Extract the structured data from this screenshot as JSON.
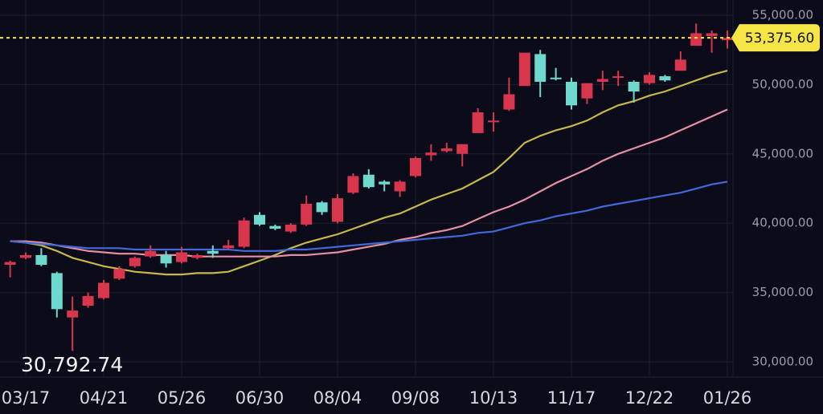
{
  "chart_data": {
    "type": "candlestick",
    "categories": [
      null,
      "03/17",
      null,
      null,
      null,
      null,
      "04/21",
      null,
      null,
      null,
      null,
      "05/26",
      null,
      null,
      null,
      null,
      "06/30",
      null,
      null,
      null,
      null,
      "08/04",
      null,
      null,
      null,
      null,
      "09/08",
      null,
      null,
      null,
      null,
      "10/13",
      null,
      null,
      null,
      null,
      "11/17",
      null,
      null,
      null,
      null,
      "12/22",
      null,
      null,
      null,
      null,
      "01/26"
    ],
    "open": [
      37000,
      37500,
      37700,
      36400,
      33200,
      34050,
      34600,
      36000,
      36900,
      37600,
      37700,
      37200,
      37500,
      38000,
      38200,
      38300,
      40600,
      39800,
      39400,
      39900,
      41500,
      40100,
      42200,
      43500,
      43000,
      42300,
      43400,
      44900,
      45200,
      45000,
      46500,
      47300,
      48200,
      49900,
      52200,
      50500,
      50200,
      49000,
      50200,
      50500,
      50200,
      50100,
      50600,
      51000,
      52800,
      53500,
      53200
    ],
    "high": [
      37300,
      37900,
      38200,
      36500,
      34700,
      35000,
      35900,
      36900,
      37600,
      38400,
      38000,
      38300,
      37800,
      38400,
      38800,
      40400,
      40800,
      39900,
      40000,
      42000,
      41600,
      42100,
      43600,
      43900,
      43100,
      43100,
      44800,
      45700,
      45800,
      45700,
      48300,
      48000,
      50500,
      52300,
      52500,
      51200,
      50500,
      50100,
      51000,
      51000,
      50300,
      50900,
      50700,
      52400,
      54400,
      53900,
      53900
    ],
    "low": [
      36100,
      37400,
      36900,
      33200,
      30792.74,
      33900,
      34500,
      35900,
      36800,
      37500,
      36800,
      37100,
      37400,
      37500,
      38100,
      38200,
      39800,
      39500,
      39300,
      39800,
      40600,
      40000,
      42100,
      42500,
      42300,
      41900,
      43300,
      44500,
      45100,
      44100,
      46500,
      46600,
      48100,
      49900,
      49100,
      50300,
      48200,
      48600,
      49600,
      49900,
      48700,
      50000,
      50200,
      51000,
      52800,
      52300,
      52600
    ],
    "close": [
      37200,
      37700,
      37000,
      33800,
      33700,
      34750,
      35700,
      36700,
      37500,
      38000,
      37100,
      37900,
      37700,
      37800,
      38400,
      40200,
      39900,
      39600,
      39900,
      41400,
      40800,
      41800,
      43400,
      42600,
      42800,
      43000,
      44700,
      45100,
      45400,
      45700,
      48000,
      47400,
      49300,
      52300,
      50200,
      50400,
      48500,
      50100,
      50400,
      50600,
      49500,
      50700,
      50300,
      51800,
      53700,
      53700,
      53375.6
    ],
    "up_color": "#d8364c",
    "down_color": "#6fd9cf",
    "lines": [
      {
        "color": "#c8b84a",
        "values": [
          38700,
          38600,
          38400,
          38000,
          37500,
          37200,
          36900,
          36700,
          36500,
          36400,
          36300,
          36300,
          36400,
          36400,
          36500,
          36900,
          37300,
          37700,
          38200,
          38600,
          38900,
          39200,
          39600,
          40000,
          40400,
          40700,
          41200,
          41700,
          42100,
          42500,
          43100,
          43700,
          44700,
          45800,
          46300,
          46700,
          47000,
          47400,
          48000,
          48500,
          48800,
          49200,
          49500,
          49900,
          50300,
          50700,
          51000
        ]
      },
      {
        "color": "#e890a3",
        "values": [
          38700,
          38700,
          38600,
          38400,
          38200,
          38000,
          37900,
          37800,
          37800,
          37700,
          37700,
          37700,
          37600,
          37600,
          37600,
          37600,
          37600,
          37600,
          37700,
          37700,
          37800,
          37900,
          38100,
          38300,
          38500,
          38800,
          39000,
          39300,
          39500,
          39800,
          40300,
          40800,
          41200,
          41700,
          42300,
          42900,
          43400,
          43900,
          44500,
          45000,
          45400,
          45800,
          46200,
          46700,
          47200,
          47700,
          48200
        ]
      },
      {
        "color": "#4169d8",
        "values": [
          38700,
          38600,
          38500,
          38400,
          38300,
          38200,
          38200,
          38200,
          38100,
          38100,
          38100,
          38100,
          38100,
          38100,
          38100,
          38000,
          38000,
          38000,
          38100,
          38100,
          38200,
          38300,
          38400,
          38500,
          38600,
          38700,
          38800,
          38900,
          39000,
          39100,
          39300,
          39400,
          39700,
          40000,
          40200,
          40500,
          40700,
          40900,
          41200,
          41400,
          41600,
          41800,
          42000,
          42200,
          42500,
          42800,
          43000
        ]
      }
    ],
    "ylim": [
      28900,
      56100
    ],
    "yticks": [
      {
        "value": 30000,
        "label": "30,000.00"
      },
      {
        "value": 35000,
        "label": "35,000.00"
      },
      {
        "value": 40000,
        "label": "40,000.00"
      },
      {
        "value": 45000,
        "label": "45,000.00"
      },
      {
        "value": 50000,
        "label": "50,000.00"
      },
      {
        "value": 55000,
        "label": "55,000.00"
      }
    ],
    "grid": true,
    "last_price": {
      "value": 53375.6,
      "label": "53,375.60"
    },
    "low_label": {
      "value": 30792.74,
      "label": "30,792.74"
    }
  }
}
